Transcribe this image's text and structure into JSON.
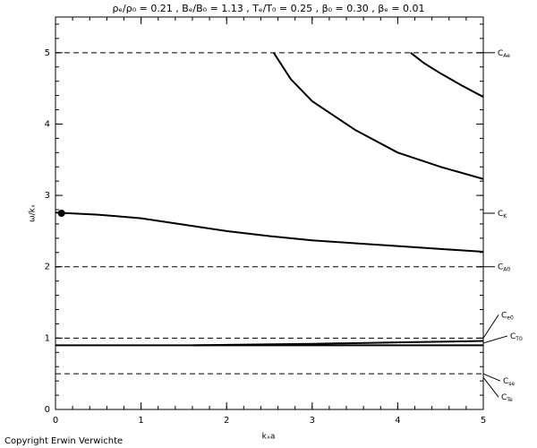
{
  "chart_data": {
    "type": "line",
    "title": "ρₑ/ρ₀ = 0.21 , Bₑ/B₀ = 1.13 , Tₑ/T₀ = 0.25 , β₀ = 0.30 , βₑ = 0.01",
    "x_label": "kₓa",
    "y_label": "ω/kₓ",
    "footer": "Copyright  Erwin Verwichte",
    "xlim": [
      0,
      5
    ],
    "ylim": [
      0,
      5.5
    ],
    "xticks": [
      0,
      1,
      2,
      3,
      4,
      5
    ],
    "yticks": [
      0,
      1,
      2,
      3,
      4,
      5
    ],
    "series": [
      {
        "color": "#000000",
        "x": [
          4.15,
          4.3,
          4.5,
          4.75,
          5
        ],
        "values": [
          5,
          4.86,
          4.71,
          4.54,
          4.38
        ]
      },
      {
        "color": "#000000",
        "x": [
          2.55,
          2.75,
          3,
          3.5,
          4,
          4.5,
          5
        ],
        "values": [
          5,
          4.63,
          4.32,
          3.92,
          3.6,
          3.4,
          3.23
        ]
      },
      {
        "color": "#000000",
        "x": [
          0,
          0.5,
          1,
          1.5,
          2,
          2.5,
          3,
          3.5,
          4,
          4.5,
          5
        ],
        "values": [
          2.76,
          2.73,
          2.68,
          2.59,
          2.5,
          2.43,
          2.37,
          2.33,
          2.29,
          2.25,
          2.21
        ]
      },
      {
        "color": "#000000",
        "x": [
          0,
          1,
          2,
          3,
          4,
          5
        ],
        "values": [
          0.9,
          0.9,
          0.9,
          0.9,
          0.9,
          0.9
        ]
      },
      {
        "color": "#000000",
        "x": [
          1.6,
          3,
          4,
          5
        ],
        "values": [
          0.9,
          0.92,
          0.94,
          0.96
        ]
      }
    ],
    "points": {
      "x": [
        0.07
      ],
      "values": [
        2.75
      ]
    },
    "reference_lines": [
      {
        "value": 5,
        "label": "C",
        "sub": "Ae",
        "dashed": true
      },
      {
        "value": 2.75,
        "label": "C",
        "sub": "K",
        "dashed": false
      },
      {
        "value": 2,
        "label": "C",
        "sub": "A0",
        "dashed": true
      },
      {
        "value": 1,
        "label": "C",
        "sub": "e0",
        "dashed": true
      },
      {
        "value": 0.93,
        "label": "C",
        "sub": "T0",
        "dashed": false
      },
      {
        "value": 0.5,
        "label": "C",
        "sub": "se",
        "dashed": true
      },
      {
        "value": 0.45,
        "label": "C",
        "sub": "Te",
        "dashed": false
      }
    ]
  }
}
